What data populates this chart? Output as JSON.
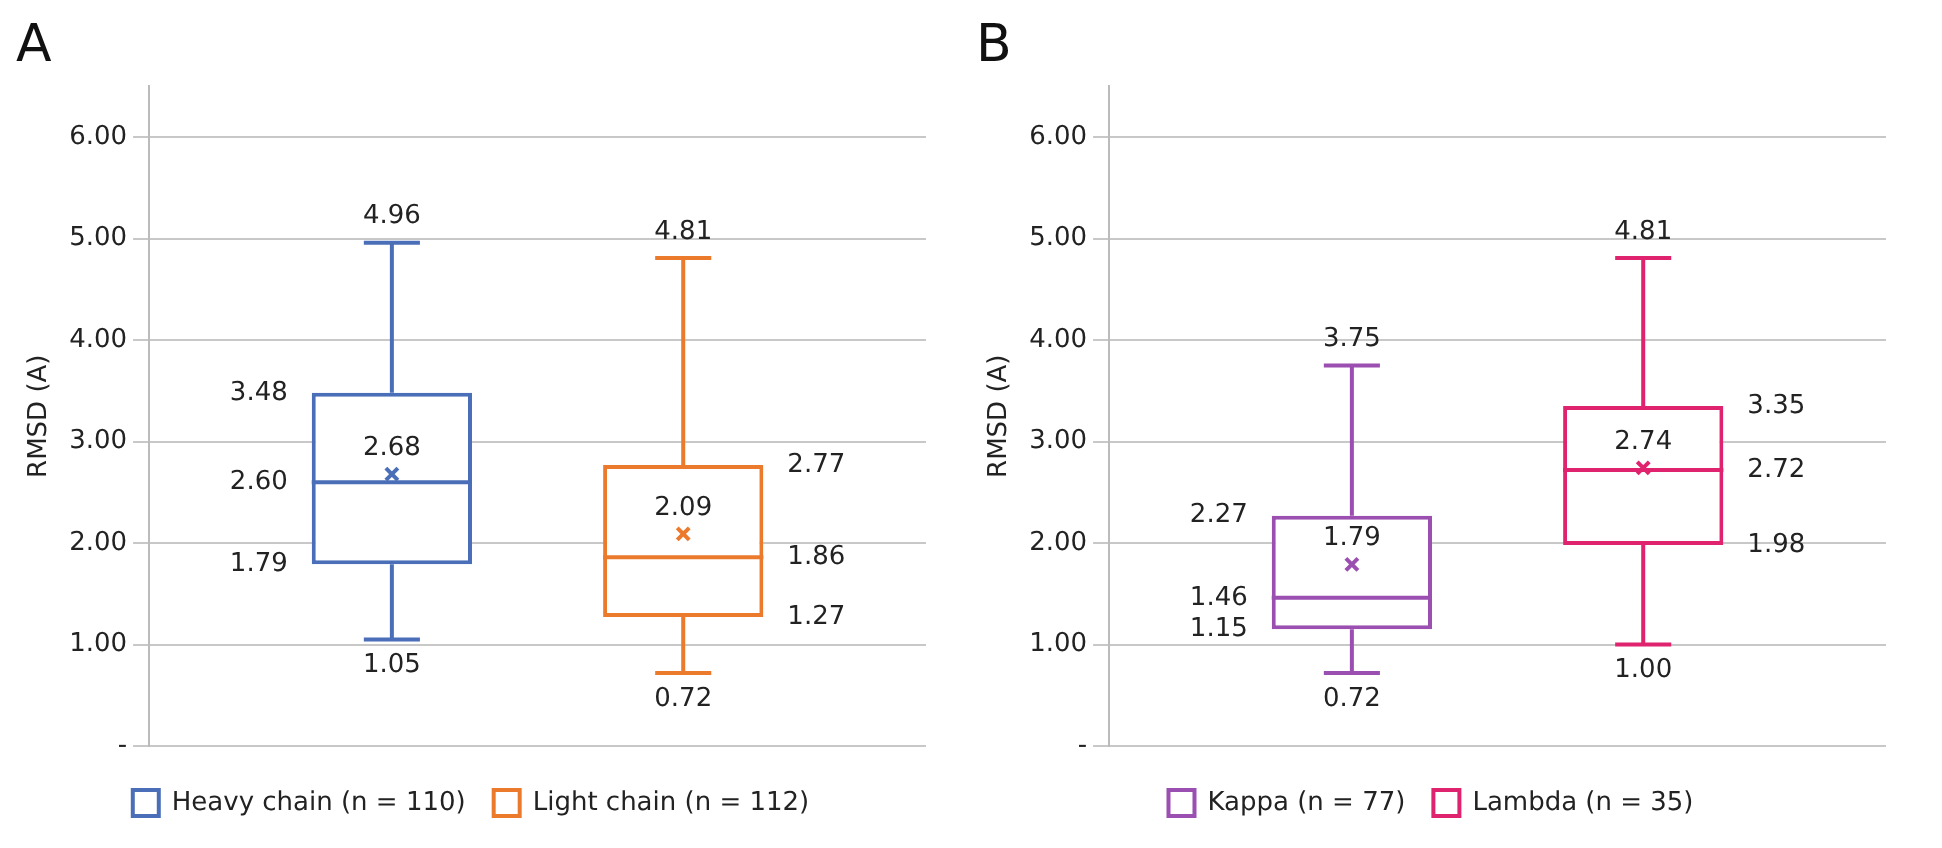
{
  "chart_data": [
    {
      "type": "box",
      "title": "A",
      "ylabel": "RMSD (A)",
      "categories": [
        null
      ],
      "ylim": [
        0,
        6.5
      ],
      "yticks": [
        {
          "value": 0,
          "label": "-"
        },
        {
          "value": 1,
          "label": "1.00"
        },
        {
          "value": 2,
          "label": "2.00"
        },
        {
          "value": 3,
          "label": "3.00"
        },
        {
          "value": 4,
          "label": "4.00"
        },
        {
          "value": 5,
          "label": "5.00"
        },
        {
          "value": 6,
          "label": "6.00"
        }
      ],
      "grid": "y",
      "legend": "bottom",
      "series": [
        {
          "name": "Heavy chain (n = 110)",
          "color": "#4a6fb8",
          "boxes": [
            {
              "low": 1.05,
              "q1": 1.79,
              "median": 2.6,
              "q3": 3.48,
              "high": 4.96,
              "mean": 2.68
            }
          ]
        },
        {
          "name": "Light chain (n = 112)",
          "color": "#ec7a2c",
          "boxes": [
            {
              "low": 0.72,
              "q1": 1.27,
              "median": 1.86,
              "q3": 2.77,
              "high": 4.81,
              "mean": 2.09
            }
          ]
        }
      ],
      "annotations": [
        {
          "text": "4.96",
          "y": 4.96
        },
        "3.48",
        "2.68",
        "2.60",
        "1.79",
        {
          "text": "1.05",
          "y": 1.05
        },
        {
          "text": "4.81",
          "y": 4.81
        },
        "2.77",
        "2.09",
        "1.86",
        "1.27",
        {
          "text": "0.72",
          "y": 0.72
        }
      ]
    },
    {
      "type": "box",
      "title": "B",
      "ylabel": "RMSD (A)",
      "categories": [
        null
      ],
      "ylim": [
        0,
        6.5
      ],
      "yticks": [
        {
          "value": 0,
          "label": "-"
        },
        {
          "value": 1,
          "label": "1.00"
        },
        {
          "value": 2,
          "label": "2.00"
        },
        {
          "value": 3,
          "label": "3.00"
        },
        {
          "value": 4,
          "label": "4.00"
        },
        {
          "value": 5,
          "label": "5.00"
        },
        {
          "value": 6,
          "label": "6.00"
        }
      ],
      "grid": "y",
      "legend": "bottom",
      "series": [
        {
          "name": "Kappa (n = 77)",
          "color": "#9b4fb0",
          "boxes": [
            {
              "low": 0.72,
              "q1": 1.15,
              "median": 1.46,
              "q3": 2.27,
              "high": 3.75,
              "mean": 1.79
            }
          ]
        },
        {
          "name": "Lambda (n = 35)",
          "color": "#e0236e",
          "boxes": [
            {
              "low": 1.0,
              "q1": 1.98,
              "median": 2.72,
              "q3": 3.35,
              "high": 4.81,
              "mean": 2.74
            }
          ]
        }
      ],
      "annotations": [
        {
          "text": "3.75",
          "y": 3.75
        },
        "2.27",
        "1.79",
        "1.46",
        "1.15",
        {
          "text": "0.72",
          "y": 0.72
        },
        {
          "text": "4.81",
          "y": 4.81
        },
        "3.35",
        "2.74",
        "2.72",
        "1.98",
        {
          "text": "1.00",
          "y": 1.0
        }
      ]
    }
  ]
}
